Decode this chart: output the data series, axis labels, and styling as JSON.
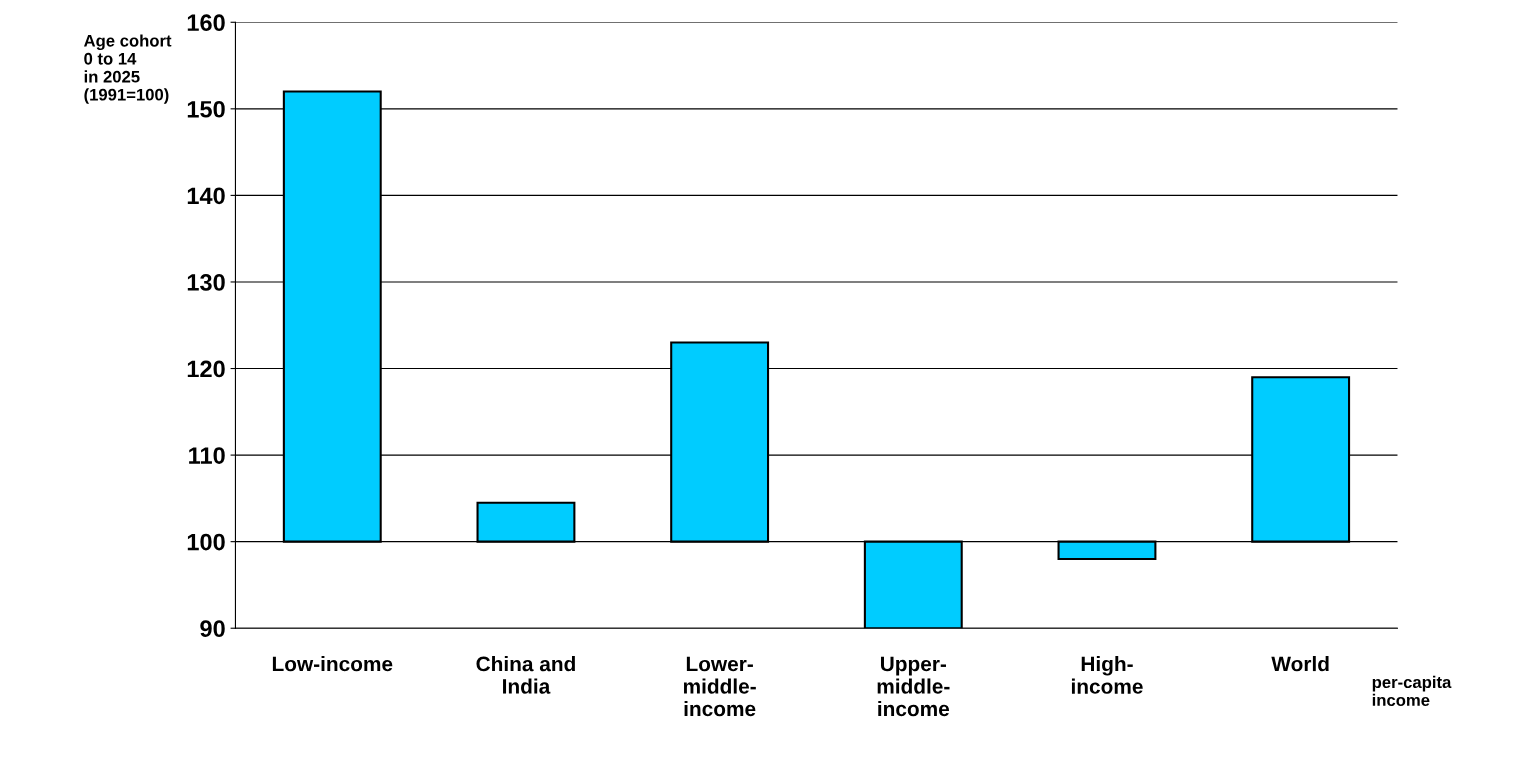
{
  "chart_data": {
    "type": "bar",
    "categories": [
      "Low-income",
      "China and\nIndia",
      "Lower-\nmiddle-\nincome",
      "Upper-\nmiddle-\nincome",
      "High-\nincome",
      "World"
    ],
    "base": [
      100,
      100,
      100,
      100,
      100,
      100
    ],
    "values": [
      52,
      4.5,
      23,
      -10,
      -2,
      19
    ],
    "color": "#00ccff",
    "ylabel": "Age cohort\n0 to 14\nin 2025\n(1991=100)",
    "xlabel": "per-capita\nincome",
    "ylim": [
      90,
      160
    ],
    "yticks": [
      90,
      100,
      110,
      120,
      130,
      140,
      150,
      160
    ],
    "grid": "y"
  }
}
